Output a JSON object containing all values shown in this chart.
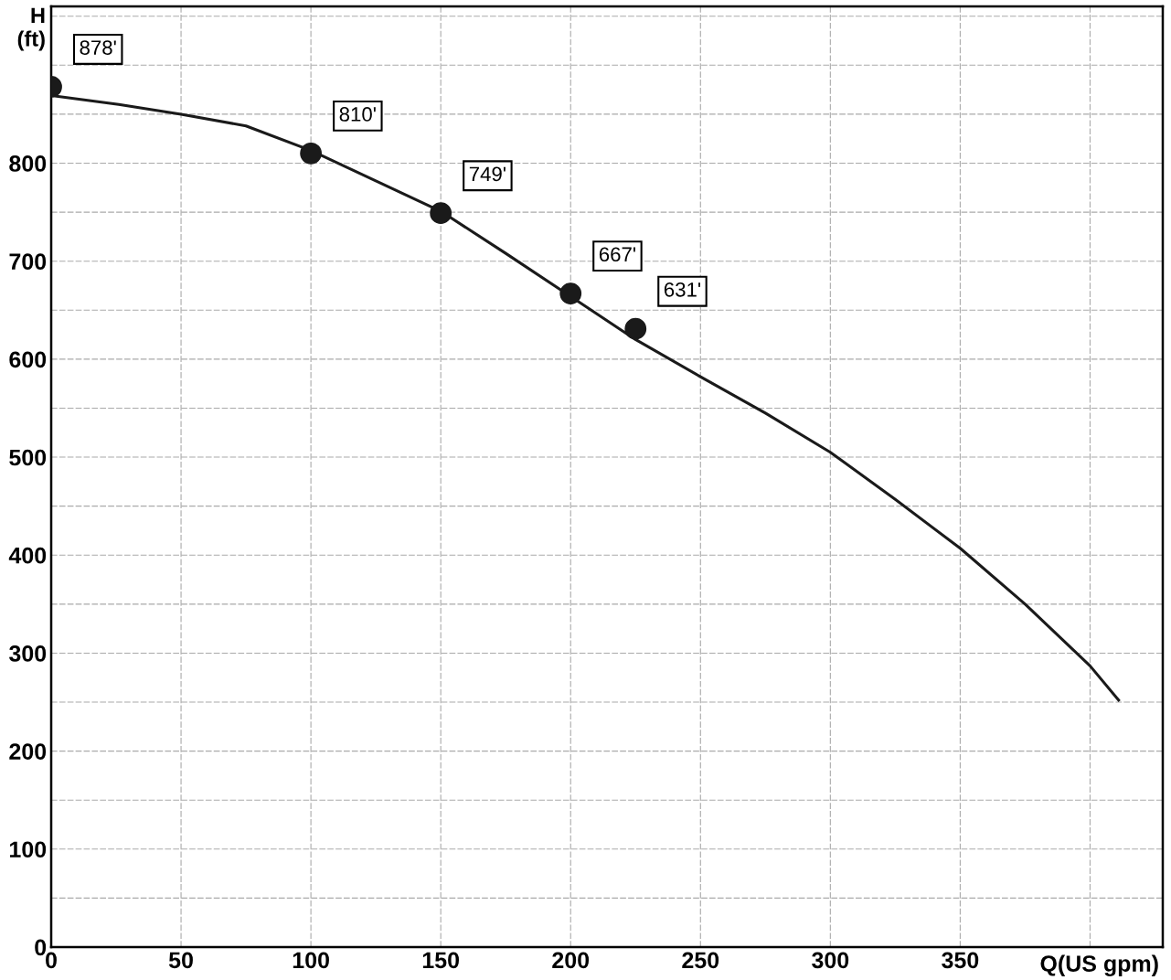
{
  "chart_data": {
    "type": "line",
    "ylabel": "H\n(ft)",
    "xlabel": "Q(US gpm)",
    "series": [
      {
        "color": "#1a1a1a",
        "marker": "none",
        "line_style": "solid",
        "x": [
          0,
          26,
          50,
          75,
          100,
          125,
          150,
          175,
          200,
          225,
          250,
          275,
          300,
          325,
          350,
          375,
          400,
          411
        ],
        "values": [
          869,
          860,
          850,
          838,
          813,
          782,
          751,
          708,
          664,
          620,
          582,
          545,
          505,
          457,
          407,
          350,
          287,
          252
        ]
      },
      {
        "type": "scatter",
        "color": "#1a1a1a",
        "marker": "circle",
        "x": [
          0,
          100,
          150,
          200,
          225
        ],
        "values": [
          878,
          810,
          749,
          667,
          631
        ],
        "value_labels": [
          "878'",
          "810'",
          "749'",
          "667'",
          "631'"
        ]
      }
    ],
    "xlim": [
      0,
      428
    ],
    "ylim": [
      0,
      960
    ],
    "xticks": [
      0,
      50,
      100,
      150,
      200,
      250,
      300,
      350,
      {
        "value": 400,
        "label": null
      }
    ],
    "yticks": [
      0,
      {
        "value": 50,
        "label": null
      },
      100,
      {
        "value": 150,
        "label": null
      },
      200,
      {
        "value": 250,
        "label": null
      },
      300,
      {
        "value": 350,
        "label": null
      },
      400,
      {
        "value": 450,
        "label": null
      },
      500,
      {
        "value": 550,
        "label": null
      },
      600,
      {
        "value": 650,
        "label": null
      },
      700,
      {
        "value": 750,
        "label": null
      },
      800,
      {
        "value": 850,
        "label": null
      },
      {
        "value": 900,
        "label": null
      },
      {
        "value": 950,
        "label": null
      }
    ],
    "grid": true,
    "legend": false
  }
}
